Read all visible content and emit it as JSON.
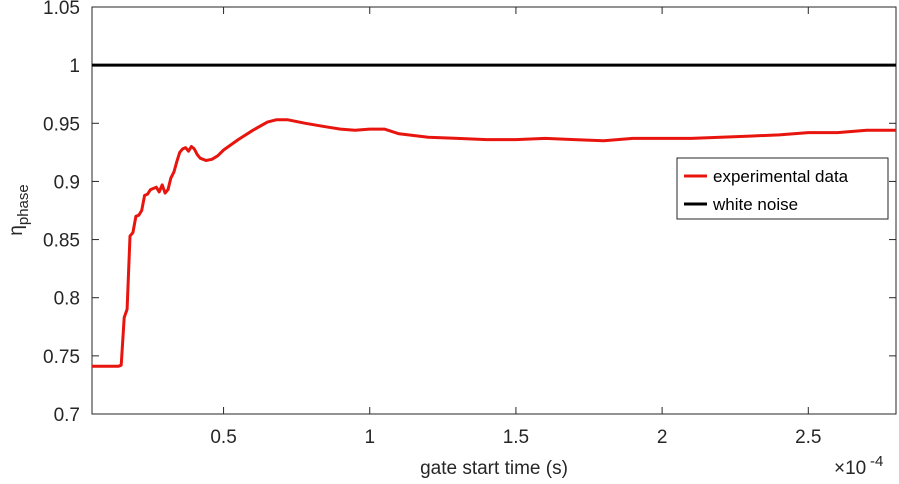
{
  "chart_data": {
    "type": "line",
    "title": "",
    "xlabel": "gate start time (s)",
    "ylabel_main": "η",
    "ylabel_sub": "phase",
    "x_exponent_label": "×10",
    "x_exponent_power": "-4",
    "xlim": [
      0.05,
      2.8
    ],
    "ylim": [
      0.7,
      1.05
    ],
    "xticks": [
      {
        "value": 0.5,
        "label": "0.5"
      },
      {
        "value": 1,
        "label": "1"
      },
      {
        "value": 1.5,
        "label": "1.5"
      },
      {
        "value": 2,
        "label": "2"
      },
      {
        "value": 2.5,
        "label": "2.5"
      }
    ],
    "yticks": [
      {
        "value": 0.7,
        "label": "0.7"
      },
      {
        "value": 0.75,
        "label": "0.75"
      },
      {
        "value": 0.8,
        "label": "0.8"
      },
      {
        "value": 0.85,
        "label": "0.85"
      },
      {
        "value": 0.9,
        "label": "0.9"
      },
      {
        "value": 0.95,
        "label": "0.95"
      },
      {
        "value": 1,
        "label": "1"
      },
      {
        "value": 1.05,
        "label": "1.05"
      }
    ],
    "grid": false,
    "legend_position": "right",
    "series": [
      {
        "name": "experimental data",
        "color": "#e8140e",
        "points": [
          [
            0.05,
            0.741
          ],
          [
            0.1,
            0.741
          ],
          [
            0.14,
            0.741
          ],
          [
            0.15,
            0.742
          ],
          [
            0.16,
            0.783
          ],
          [
            0.17,
            0.79
          ],
          [
            0.18,
            0.853
          ],
          [
            0.19,
            0.856
          ],
          [
            0.2,
            0.87
          ],
          [
            0.21,
            0.871
          ],
          [
            0.22,
            0.875
          ],
          [
            0.23,
            0.888
          ],
          [
            0.24,
            0.889
          ],
          [
            0.25,
            0.893
          ],
          [
            0.27,
            0.895
          ],
          [
            0.28,
            0.891
          ],
          [
            0.29,
            0.897
          ],
          [
            0.3,
            0.89
          ],
          [
            0.31,
            0.893
          ],
          [
            0.32,
            0.903
          ],
          [
            0.33,
            0.908
          ],
          [
            0.34,
            0.917
          ],
          [
            0.35,
            0.925
          ],
          [
            0.36,
            0.928
          ],
          [
            0.37,
            0.929
          ],
          [
            0.38,
            0.926
          ],
          [
            0.39,
            0.93
          ],
          [
            0.4,
            0.928
          ],
          [
            0.41,
            0.923
          ],
          [
            0.42,
            0.92
          ],
          [
            0.44,
            0.918
          ],
          [
            0.46,
            0.919
          ],
          [
            0.48,
            0.922
          ],
          [
            0.5,
            0.927
          ],
          [
            0.55,
            0.936
          ],
          [
            0.6,
            0.944
          ],
          [
            0.65,
            0.951
          ],
          [
            0.68,
            0.953
          ],
          [
            0.72,
            0.953
          ],
          [
            0.78,
            0.95
          ],
          [
            0.85,
            0.947
          ],
          [
            0.9,
            0.945
          ],
          [
            0.95,
            0.944
          ],
          [
            1.0,
            0.945
          ],
          [
            1.05,
            0.945
          ],
          [
            1.1,
            0.941
          ],
          [
            1.2,
            0.938
          ],
          [
            1.3,
            0.937
          ],
          [
            1.4,
            0.936
          ],
          [
            1.5,
            0.936
          ],
          [
            1.6,
            0.937
          ],
          [
            1.7,
            0.936
          ],
          [
            1.8,
            0.935
          ],
          [
            1.9,
            0.937
          ],
          [
            2.0,
            0.937
          ],
          [
            2.1,
            0.937
          ],
          [
            2.2,
            0.938
          ],
          [
            2.3,
            0.939
          ],
          [
            2.4,
            0.94
          ],
          [
            2.5,
            0.942
          ],
          [
            2.6,
            0.942
          ],
          [
            2.7,
            0.944
          ],
          [
            2.8,
            0.944
          ]
        ]
      },
      {
        "name": "white noise",
        "color": "#000000",
        "points": [
          [
            0.05,
            1.0
          ],
          [
            0.3,
            1.0
          ],
          [
            0.6,
            1.0
          ],
          [
            0.8,
            1.0
          ],
          [
            1.0,
            1.0
          ],
          [
            1.3,
            1.0
          ],
          [
            1.6,
            1.0
          ],
          [
            1.9,
            1.0
          ],
          [
            2.2,
            1.0
          ],
          [
            2.5,
            1.0
          ],
          [
            2.8,
            1.0
          ]
        ]
      }
    ]
  }
}
